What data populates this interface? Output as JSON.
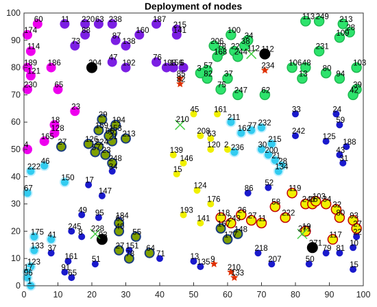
{
  "chart_data": {
    "type": "scatter",
    "title": "Deployment of nodes",
    "xlabel": "",
    "ylabel": "",
    "xlim": [
      0,
      100
    ],
    "ylim": [
      0,
      100
    ],
    "xticks": [
      "0",
      "10",
      "20",
      "30",
      "40",
      "50",
      "60",
      "70",
      "80",
      "90",
      "100"
    ],
    "yticks": [
      "0",
      "10",
      "20",
      "30",
      "40",
      "50",
      "60",
      "70",
      "80",
      "90",
      "100"
    ],
    "grid": false,
    "colors": {
      "magenta": "#ee00ee",
      "purple": "#7b1fe3",
      "green_cyan": "#2de36c",
      "cyan": "#33ccf0",
      "blue": "#1a1acc",
      "yellow": "#f0f000",
      "olive": "#7fa000",
      "red_star": "#e03000",
      "green_x": "#44cc44",
      "black": "#000000",
      "navy": "#0033aa"
    },
    "series": [
      {
        "points": [
          {
            "x": 1,
            "y": 92,
            "label": "174"
          },
          {
            "x": 2,
            "y": 86,
            "label": "114"
          },
          {
            "x": 1,
            "y": 80,
            "label": "189"
          },
          {
            "x": 2,
            "y": 77,
            "label": "121"
          },
          {
            "x": 1,
            "y": 72,
            "label": "230"
          },
          {
            "x": 8,
            "y": 80,
            "label": "186"
          },
          {
            "x": 10,
            "y": 72,
            "label": "65"
          },
          {
            "x": 9,
            "y": 59,
            "label": "18"
          },
          {
            "x": 9,
            "y": 56,
            "label": "128"
          },
          {
            "x": 6,
            "y": 53,
            "label": "165"
          },
          {
            "x": 1,
            "y": 50,
            "label": "4"
          },
          {
            "x": 15,
            "y": 64,
            "label": "23"
          },
          {
            "x": 4,
            "y": 96,
            "label": "60"
          }
        ]
      },
      {
        "points": [
          {
            "x": 12,
            "y": 96,
            "label": "11"
          },
          {
            "x": 18,
            "y": 96,
            "label": "220"
          },
          {
            "x": 22,
            "y": 96,
            "label": "63"
          },
          {
            "x": 26,
            "y": 96,
            "label": "238"
          },
          {
            "x": 18,
            "y": 92,
            "label": "88"
          },
          {
            "x": 27,
            "y": 90,
            "label": "87"
          },
          {
            "x": 30,
            "y": 88,
            "label": "138"
          },
          {
            "x": 34,
            "y": 92,
            "label": "160"
          },
          {
            "x": 15,
            "y": 88,
            "label": "73"
          },
          {
            "x": 39,
            "y": 96,
            "label": "187"
          },
          {
            "x": 45,
            "y": 94,
            "label": "215"
          },
          {
            "x": 45,
            "y": 92,
            "label": "141"
          },
          {
            "x": 26,
            "y": 82,
            "label": "47"
          },
          {
            "x": 30,
            "y": 80,
            "label": "192"
          },
          {
            "x": 39,
            "y": 82,
            "label": "76"
          },
          {
            "x": 42,
            "y": 80,
            "label": "198"
          },
          {
            "x": 44,
            "y": 80,
            "label": "156"
          },
          {
            "x": 47,
            "y": 80,
            "label": "6"
          }
        ]
      },
      {
        "points": [
          {
            "x": 56,
            "y": 88,
            "label": "206"
          },
          {
            "x": 58,
            "y": 86,
            "label": "78"
          },
          {
            "x": 61,
            "y": 92,
            "label": "100"
          },
          {
            "x": 65,
            "y": 88,
            "label": "38"
          },
          {
            "x": 66,
            "y": 90,
            "label": "34"
          },
          {
            "x": 62,
            "y": 86,
            "label": "22"
          },
          {
            "x": 57,
            "y": 84,
            "label": "168"
          },
          {
            "x": 63,
            "y": 84,
            "label": "244"
          },
          {
            "x": 54,
            "y": 79,
            "label": "57"
          },
          {
            "x": 60,
            "y": 76,
            "label": "37"
          },
          {
            "x": 58,
            "y": 72,
            "label": "75"
          },
          {
            "x": 63,
            "y": 70,
            "label": "247"
          },
          {
            "x": 71,
            "y": 70,
            "label": "62"
          },
          {
            "x": 83,
            "y": 97,
            "label": "113"
          },
          {
            "x": 87,
            "y": 97,
            "label": "249"
          },
          {
            "x": 94,
            "y": 96,
            "label": "213"
          },
          {
            "x": 96,
            "y": 93,
            "label": "28"
          },
          {
            "x": 93,
            "y": 91,
            "label": "109"
          },
          {
            "x": 87,
            "y": 86,
            "label": "231"
          },
          {
            "x": 79,
            "y": 80,
            "label": "106"
          },
          {
            "x": 83,
            "y": 80,
            "label": "48"
          },
          {
            "x": 82,
            "y": 76,
            "label": "13"
          },
          {
            "x": 89,
            "y": 78,
            "label": "80"
          },
          {
            "x": 93,
            "y": 76,
            "label": "94"
          },
          {
            "x": 98,
            "y": 80,
            "label": "103"
          },
          {
            "x": 98,
            "y": 72,
            "label": "39"
          },
          {
            "x": 97,
            "y": 70,
            "label": "42"
          },
          {
            "x": 54,
            "y": 76,
            "label": "82"
          },
          {
            "x": 52,
            "y": 78,
            "label": "3"
          }
        ]
      },
      {
        "points": [
          {
            "x": 61,
            "y": 60,
            "label": "211"
          },
          {
            "x": 70,
            "y": 58,
            "label": "232"
          },
          {
            "x": 64,
            "y": 56,
            "label": "162"
          },
          {
            "x": 67,
            "y": 57,
            "label": "77"
          },
          {
            "x": 73,
            "y": 52,
            "label": "215"
          },
          {
            "x": 70,
            "y": 50,
            "label": "30"
          },
          {
            "x": 72,
            "y": 48,
            "label": "200"
          },
          {
            "x": 74,
            "y": 46,
            "label": "21"
          },
          {
            "x": 76,
            "y": 44,
            "label": "28"
          },
          {
            "x": 75,
            "y": 42,
            "label": "134"
          },
          {
            "x": 62,
            "y": 49,
            "label": "236"
          },
          {
            "x": 6,
            "y": 44,
            "label": "46"
          },
          {
            "x": 2,
            "y": 42,
            "label": "222"
          },
          {
            "x": 12,
            "y": 38,
            "label": "150"
          },
          {
            "x": 1,
            "y": 34,
            "label": "67"
          },
          {
            "x": 3,
            "y": 18,
            "label": "175"
          },
          {
            "x": 8,
            "y": 17,
            "label": "41"
          },
          {
            "x": 3,
            "y": 13,
            "label": "133"
          },
          {
            "x": 2,
            "y": 7,
            "label": "123"
          },
          {
            "x": 1,
            "y": 5,
            "label": "17"
          },
          {
            "x": 1,
            "y": 3,
            "label": "96"
          },
          {
            "x": 2,
            "y": 0,
            "label": "1"
          }
        ]
      },
      {
        "points": [
          {
            "x": 80,
            "y": 63,
            "label": "33"
          },
          {
            "x": 92,
            "y": 63,
            "label": "24"
          },
          {
            "x": 93,
            "y": 59,
            "label": "59"
          },
          {
            "x": 80,
            "y": 55,
            "label": "242"
          },
          {
            "x": 89,
            "y": 53,
            "label": "125"
          },
          {
            "x": 95,
            "y": 51,
            "label": "188"
          },
          {
            "x": 93,
            "y": 48,
            "label": "43"
          },
          {
            "x": 94,
            "y": 45,
            "label": "31"
          },
          {
            "x": 72,
            "y": 36,
            "label": "52"
          },
          {
            "x": 66,
            "y": 34,
            "label": "86"
          },
          {
            "x": 26,
            "y": 42,
            "label": "34"
          },
          {
            "x": 19,
            "y": 37,
            "label": "17"
          },
          {
            "x": 23,
            "y": 33,
            "label": "147"
          },
          {
            "x": 17,
            "y": 26,
            "label": "49"
          },
          {
            "x": 22,
            "y": 25,
            "label": "95"
          },
          {
            "x": 28,
            "y": 24,
            "label": "184"
          },
          {
            "x": 14,
            "y": 20,
            "label": "245"
          },
          {
            "x": 17,
            "y": 18,
            "label": "8"
          },
          {
            "x": 13,
            "y": 9,
            "label": "161"
          },
          {
            "x": 21,
            "y": 8,
            "label": "51"
          },
          {
            "x": 12,
            "y": 5,
            "label": "91"
          },
          {
            "x": 14,
            "y": 3,
            "label": "65"
          },
          {
            "x": 8,
            "y": 12,
            "label": "37"
          },
          {
            "x": 31,
            "y": 13,
            "label": "151"
          },
          {
            "x": 40,
            "y": 10,
            "label": "71"
          },
          {
            "x": 50,
            "y": 9,
            "label": "13"
          },
          {
            "x": 52,
            "y": 7,
            "label": "135"
          },
          {
            "x": 69,
            "y": 12,
            "label": "218"
          },
          {
            "x": 73,
            "y": 8,
            "label": "207"
          },
          {
            "x": 84,
            "y": 8,
            "label": "50"
          },
          {
            "x": 89,
            "y": 12,
            "label": "79"
          },
          {
            "x": 93,
            "y": 12,
            "label": "81"
          },
          {
            "x": 97,
            "y": 14,
            "label": "10"
          },
          {
            "x": 97,
            "y": 6,
            "label": "15"
          },
          {
            "x": 98,
            "y": 18,
            "label": "22"
          }
        ]
      },
      {
        "points": [
          {
            "x": 50,
            "y": 63,
            "label": "45"
          },
          {
            "x": 57,
            "y": 63,
            "label": "161"
          },
          {
            "x": 52,
            "y": 55,
            "label": "208"
          },
          {
            "x": 55,
            "y": 54,
            "label": "63"
          },
          {
            "x": 55,
            "y": 50,
            "label": "120"
          },
          {
            "x": 60,
            "y": 50,
            "label": "2"
          },
          {
            "x": 44,
            "y": 48,
            "label": "139"
          },
          {
            "x": 47,
            "y": 45,
            "label": "146"
          },
          {
            "x": 45,
            "y": 41,
            "label": "15"
          },
          {
            "x": 51,
            "y": 35,
            "label": "124"
          },
          {
            "x": 55,
            "y": 30,
            "label": "176"
          },
          {
            "x": 47,
            "y": 26,
            "label": "193"
          },
          {
            "x": 52,
            "y": 23,
            "label": "141"
          }
        ]
      },
      {
        "points": [
          {
            "x": 79,
            "y": 34,
            "label": "119"
          },
          {
            "x": 83,
            "y": 30,
            "label": "241"
          },
          {
            "x": 85,
            "y": 30,
            "label": "16"
          },
          {
            "x": 86,
            "y": 31,
            "label": "103"
          },
          {
            "x": 89,
            "y": 30,
            "label": "34"
          },
          {
            "x": 92,
            "y": 28,
            "label": "32"
          },
          {
            "x": 93,
            "y": 25,
            "label": "80"
          },
          {
            "x": 97,
            "y": 24,
            "label": "93"
          },
          {
            "x": 98,
            "y": 21,
            "label": "27"
          },
          {
            "x": 74,
            "y": 29,
            "label": "58"
          },
          {
            "x": 77,
            "y": 25,
            "label": "222"
          },
          {
            "x": 58,
            "y": 25,
            "label": "118"
          },
          {
            "x": 64,
            "y": 26,
            "label": "26"
          },
          {
            "x": 67,
            "y": 24,
            "label": "27"
          },
          {
            "x": 61,
            "y": 23,
            "label": "243"
          },
          {
            "x": 70,
            "y": 23,
            "label": "11"
          },
          {
            "x": 83,
            "y": 20,
            "label": "19"
          },
          {
            "x": 91,
            "y": 17,
            "label": "117"
          }
        ]
      },
      {
        "points": [
          {
            "x": 23,
            "y": 61,
            "label": "29"
          },
          {
            "x": 27,
            "y": 59,
            "label": "194"
          },
          {
            "x": 26,
            "y": 56,
            "label": "153"
          },
          {
            "x": 22,
            "y": 57,
            "label": "159"
          },
          {
            "x": 19,
            "y": 52,
            "label": "126"
          },
          {
            "x": 26,
            "y": 53,
            "label": "21"
          },
          {
            "x": 30,
            "y": 54,
            "label": "213"
          },
          {
            "x": 25,
            "y": 55,
            "label": "66"
          },
          {
            "x": 22,
            "y": 51,
            "label": "224"
          },
          {
            "x": 24,
            "y": 48,
            "label": "23"
          },
          {
            "x": 26,
            "y": 45,
            "label": "248"
          },
          {
            "x": 21,
            "y": 49,
            "label": "57"
          },
          {
            "x": 11,
            "y": 51,
            "label": "27"
          },
          {
            "x": 28,
            "y": 23,
            "label": "63"
          },
          {
            "x": 28,
            "y": 20,
            "label": "40"
          },
          {
            "x": 33,
            "y": 18,
            "label": "55"
          },
          {
            "x": 28,
            "y": 13,
            "label": "27"
          },
          {
            "x": 31,
            "y": 10,
            "label": "78"
          },
          {
            "x": 37,
            "y": 12,
            "label": "64"
          },
          {
            "x": 58,
            "y": 21,
            "label": "167"
          },
          {
            "x": 60,
            "y": 17,
            "label": "177"
          },
          {
            "x": 63,
            "y": 19,
            "label": "148"
          }
        ]
      },
      {
        "points": [
          {
            "x": 61,
            "y": 5,
            "label": "210"
          },
          {
            "x": 62,
            "y": 3,
            "label": "133"
          },
          {
            "x": 56,
            "y": 8,
            "label": "9"
          },
          {
            "x": 46,
            "y": 74,
            "label": "82"
          },
          {
            "x": 46,
            "y": 76,
            "label": "85"
          },
          {
            "x": 71,
            "y": 79,
            "label": "234"
          }
        ]
      },
      {
        "points": [
          {
            "x": 20,
            "y": 80,
            "label": "204"
          },
          {
            "x": 23,
            "y": 17,
            "label": "93"
          },
          {
            "x": 71,
            "y": 85,
            "label": "112"
          },
          {
            "x": 85,
            "y": 14,
            "label": "271"
          }
        ]
      }
    ],
    "x_markers": [
      {
        "x": 46,
        "y": 59,
        "label": "210"
      },
      {
        "x": 82,
        "y": 19,
        "label": "271"
      },
      {
        "x": 21,
        "y": 19,
        "label": "228"
      },
      {
        "x": 67,
        "y": 85,
        "label": "112"
      }
    ]
  }
}
